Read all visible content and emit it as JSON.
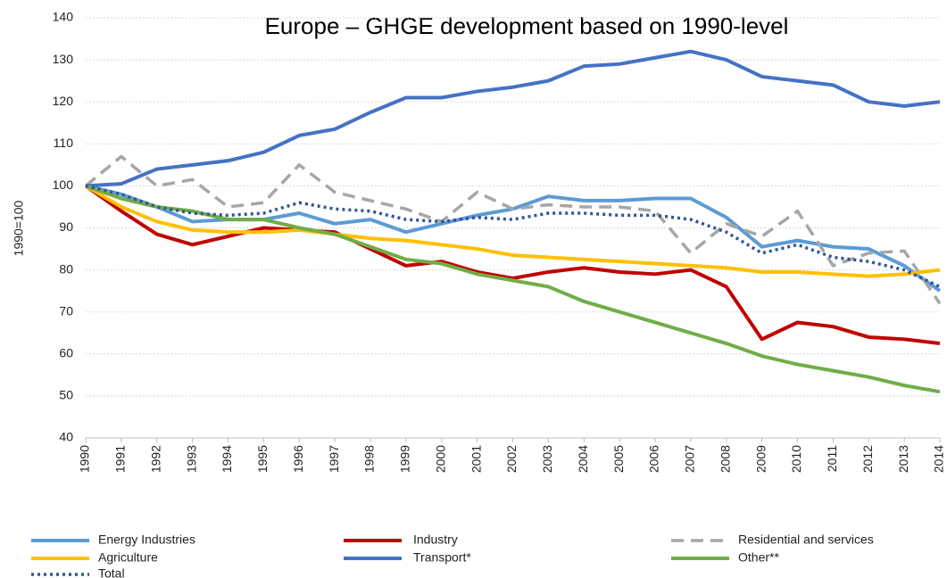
{
  "chart_data": {
    "type": "line",
    "title": "Europe – GHGE development based on 1990-level",
    "y_label": "1990=100",
    "x": [
      1990,
      1991,
      1992,
      1993,
      1994,
      1995,
      1996,
      1997,
      1998,
      1999,
      2000,
      2001,
      2002,
      2003,
      2004,
      2005,
      2006,
      2007,
      2008,
      2009,
      2010,
      2011,
      2012,
      2013,
      2014
    ],
    "xlim": [
      1990,
      2014
    ],
    "ylim": [
      40,
      140
    ],
    "yticks": [
      40,
      50,
      60,
      70,
      80,
      90,
      100,
      110,
      120,
      130,
      140
    ],
    "grid": true,
    "legend": "bottom",
    "series": [
      {
        "name": "Energy Industries",
        "color": "#5b9bd5",
        "style": "solid",
        "values": [
          100,
          98,
          95,
          91.5,
          92,
          92,
          93.5,
          91,
          92,
          89,
          91,
          93,
          94.5,
          97.5,
          96.5,
          96.5,
          97,
          97,
          92.5,
          85.5,
          87,
          85.5,
          85,
          81,
          75
        ]
      },
      {
        "name": "Industry",
        "color": "#c00000",
        "style": "solid",
        "values": [
          100,
          94,
          88.5,
          86,
          88,
          90,
          89.5,
          89,
          85,
          81,
          82,
          79.5,
          78,
          79.5,
          80.5,
          79.5,
          79,
          80,
          76,
          63.5,
          67.5,
          66.5,
          64,
          63.5,
          62.5
        ]
      },
      {
        "name": "Residential and services",
        "color": "#a6a6a6",
        "style": "dashed",
        "values": [
          100,
          107,
          100,
          101.5,
          95,
          96,
          105,
          98.5,
          96.5,
          94.5,
          91.5,
          98.5,
          94.5,
          95.5,
          95,
          95,
          94,
          84,
          91,
          88,
          94,
          81,
          84,
          84.5,
          72
        ]
      },
      {
        "name": "Agriculture",
        "color": "#ffc000",
        "style": "solid",
        "values": [
          100,
          95,
          91.5,
          89.5,
          89,
          89,
          89.5,
          88.5,
          87.5,
          87,
          86,
          85,
          83.5,
          83,
          82.5,
          82,
          81.5,
          81,
          80.5,
          79.5,
          79.5,
          79,
          78.5,
          79,
          80
        ]
      },
      {
        "name": "Transport*",
        "color": "#4472c4",
        "style": "solid",
        "values": [
          100,
          100.5,
          104,
          105,
          106,
          108,
          112,
          113.5,
          117.5,
          121,
          121,
          122.5,
          123.5,
          125,
          128.5,
          129,
          130.5,
          132,
          130,
          126,
          125,
          124,
          120,
          119,
          120
        ]
      },
      {
        "name": "Other**",
        "color": "#70ad47",
        "style": "solid",
        "values": [
          100,
          97,
          95,
          94,
          92,
          92,
          90,
          88.5,
          85.5,
          82.5,
          81.5,
          79,
          77.5,
          76,
          72.5,
          70,
          67.5,
          65,
          62.5,
          59.5,
          57.5,
          56,
          54.5,
          52.5,
          51
        ]
      },
      {
        "name": "Total",
        "color": "#2f5597",
        "style": "dotted",
        "values": [
          100,
          98,
          95,
          93.5,
          93,
          93.5,
          96,
          94.5,
          94,
          92,
          91.5,
          92.5,
          92,
          93.5,
          93.5,
          93,
          93,
          92,
          89,
          84,
          86,
          83,
          82,
          80,
          76
        ]
      }
    ]
  }
}
